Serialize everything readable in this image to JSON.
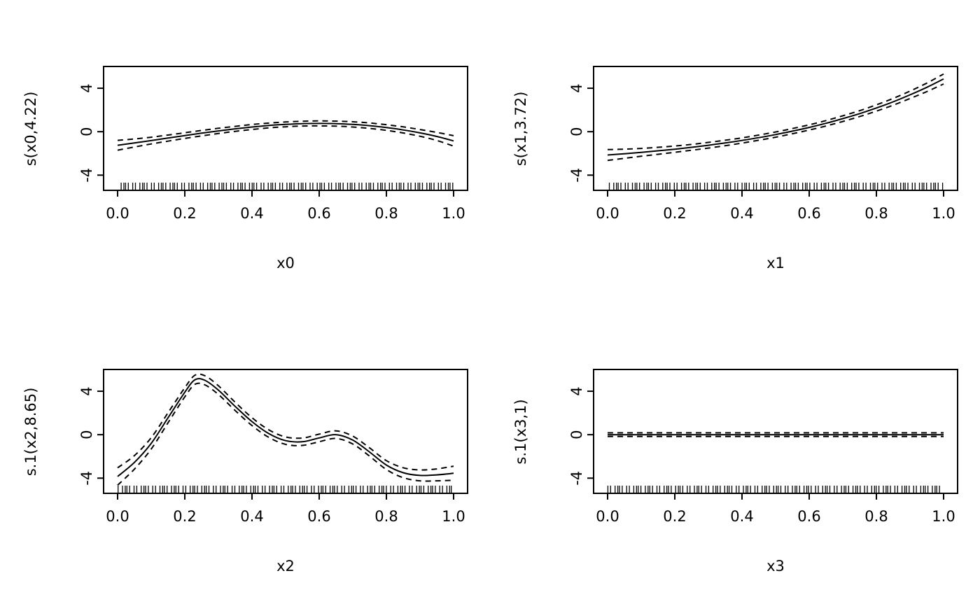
{
  "figure": {
    "background_color": "#ffffff",
    "line_color": "#000000"
  },
  "chart_data": {
    "type": "line",
    "layout": "2x2",
    "legend": "none",
    "line_styles": {
      "estimate": "solid",
      "confidence_band": "dashed"
    },
    "shared": {
      "xlim": [
        0,
        1
      ],
      "ylim": [
        -5.4,
        6.0
      ],
      "xticks": [
        "0.0",
        "0.2",
        "0.4",
        "0.6",
        "0.8",
        "1.0"
      ],
      "xtick_values": [
        0,
        0.2,
        0.4,
        0.6,
        0.8,
        1
      ],
      "yticks": [
        "-4",
        "0",
        "4"
      ],
      "ytick_values": [
        -4,
        0,
        4
      ],
      "grid": false,
      "rug": true
    },
    "panels": [
      {
        "ylabel": "s(x0,4.22)",
        "xlabel": "x0",
        "x": [
          0,
          0.05,
          0.1,
          0.15,
          0.2,
          0.25,
          0.3,
          0.35,
          0.4,
          0.45,
          0.5,
          0.55,
          0.6,
          0.65,
          0.7,
          0.75,
          0.8,
          0.85,
          0.9,
          0.95,
          1
        ],
        "mean": [
          -1.25,
          -1.04,
          -0.82,
          -0.59,
          -0.36,
          -0.14,
          0.07,
          0.26,
          0.43,
          0.57,
          0.67,
          0.74,
          0.76,
          0.74,
          0.67,
          0.55,
          0.38,
          0.16,
          -0.11,
          -0.44,
          -0.85
        ],
        "ci": [
          0.45,
          0.37,
          0.31,
          0.28,
          0.26,
          0.25,
          0.24,
          0.23,
          0.23,
          0.22,
          0.22,
          0.22,
          0.23,
          0.23,
          0.24,
          0.25,
          0.26,
          0.28,
          0.31,
          0.37,
          0.48
        ],
        "rug": {
          "count": 110,
          "phase": 0.04
        }
      },
      {
        "ylabel": "s(x1,3.72)",
        "xlabel": "x1",
        "x": [
          0,
          0.05,
          0.1,
          0.15,
          0.2,
          0.25,
          0.3,
          0.35,
          0.4,
          0.45,
          0.5,
          0.55,
          0.6,
          0.65,
          0.7,
          0.75,
          0.8,
          0.85,
          0.9,
          0.95,
          1
        ],
        "mean": [
          -2.15,
          -2.03,
          -1.9,
          -1.76,
          -1.61,
          -1.44,
          -1.25,
          -1.04,
          -0.81,
          -0.55,
          -0.27,
          0.05,
          0.39,
          0.77,
          1.2,
          1.66,
          2.18,
          2.75,
          3.39,
          4.08,
          4.85
        ],
        "ci": [
          0.5,
          0.42,
          0.36,
          0.32,
          0.29,
          0.27,
          0.26,
          0.25,
          0.24,
          0.24,
          0.24,
          0.24,
          0.24,
          0.25,
          0.26,
          0.27,
          0.29,
          0.31,
          0.34,
          0.39,
          0.46
        ],
        "rug": {
          "count": 110,
          "phase": 0.61
        }
      },
      {
        "ylabel": "s.1(x2,8.65)",
        "xlabel": "x2",
        "x": [
          0,
          0.05,
          0.1,
          0.15,
          0.2,
          0.23,
          0.26,
          0.3,
          0.35,
          0.4,
          0.45,
          0.5,
          0.55,
          0.6,
          0.65,
          0.7,
          0.75,
          0.8,
          0.85,
          0.9,
          0.95,
          1
        ],
        "mean": [
          -3.85,
          -2.55,
          -0.8,
          1.55,
          3.9,
          5.05,
          5.0,
          4.1,
          2.6,
          1.2,
          0.1,
          -0.55,
          -0.65,
          -0.3,
          0.0,
          -0.5,
          -1.6,
          -2.8,
          -3.5,
          -3.75,
          -3.7,
          -3.55
        ],
        "ci": [
          0.8,
          0.62,
          0.52,
          0.46,
          0.42,
          0.42,
          0.42,
          0.4,
          0.38,
          0.36,
          0.35,
          0.34,
          0.34,
          0.35,
          0.35,
          0.36,
          0.38,
          0.41,
          0.46,
          0.5,
          0.55,
          0.65
        ],
        "rug": {
          "count": 110,
          "phase": 0.28
        }
      },
      {
        "ylabel": "s.1(x3,1)",
        "xlabel": "x3",
        "x": [
          0,
          0.05,
          0.1,
          0.15,
          0.2,
          0.25,
          0.3,
          0.35,
          0.4,
          0.45,
          0.5,
          0.55,
          0.6,
          0.65,
          0.7,
          0.75,
          0.8,
          0.85,
          0.9,
          0.95,
          1
        ],
        "mean": [
          0,
          0,
          0,
          0,
          0,
          0,
          0,
          0,
          0,
          0,
          0,
          0,
          0,
          0,
          0,
          0,
          0,
          0,
          0,
          0,
          0
        ],
        "ci": [
          0.17,
          0.17,
          0.17,
          0.17,
          0.17,
          0.17,
          0.17,
          0.17,
          0.17,
          0.17,
          0.17,
          0.17,
          0.17,
          0.17,
          0.17,
          0.17,
          0.17,
          0.17,
          0.17,
          0.17,
          0.17
        ],
        "rug": {
          "count": 110,
          "phase": 0.85
        }
      }
    ]
  }
}
